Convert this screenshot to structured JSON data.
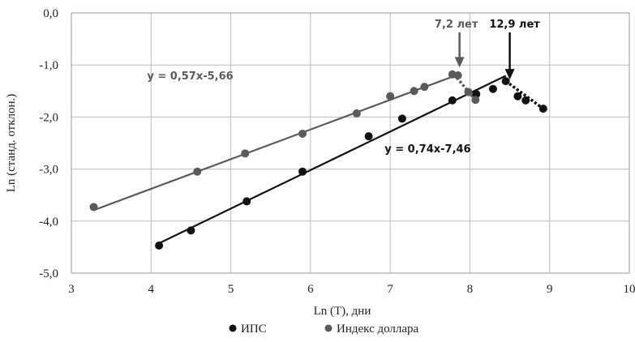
{
  "chart_data": {
    "type": "scatter",
    "xlabel": "Ln (T), дни",
    "ylabel": "Ln (станд. отклон.)",
    "xlim": [
      3,
      10
    ],
    "ylim": [
      -5,
      0
    ],
    "x_ticks": [
      3,
      4,
      5,
      6,
      7,
      8,
      9,
      10
    ],
    "y_ticks": [
      0,
      -1,
      -2,
      -3,
      -4,
      -5
    ],
    "x_tick_labels": [
      "3",
      "4",
      "5",
      "6",
      "7",
      "8",
      "9",
      "10"
    ],
    "y_tick_labels": [
      "0,0",
      "-1,0",
      "-2,0",
      "-3,0",
      "-4,0",
      "-5,0"
    ],
    "grid": true,
    "legend_position": "bottom",
    "series": [
      {
        "name": "ИПС",
        "color": "#111111",
        "points": [
          [
            4.1,
            -4.47
          ],
          [
            4.5,
            -4.18
          ],
          [
            5.2,
            -3.62
          ],
          [
            5.9,
            -3.05
          ],
          [
            6.73,
            -2.37
          ],
          [
            7.15,
            -2.03
          ],
          [
            7.78,
            -1.68
          ],
          [
            8.08,
            -1.56
          ],
          [
            8.29,
            -1.46
          ],
          [
            8.45,
            -1.31
          ],
          [
            8.6,
            -1.6
          ],
          [
            8.7,
            -1.68
          ],
          [
            8.92,
            -1.84
          ]
        ],
        "trendline": {
          "equation": "y = 0,74x-7,46",
          "slope": 0.74,
          "intercept": -7.46,
          "x_range": [
            4.07,
            8.45
          ]
        },
        "drop_line": [
          [
            8.45,
            -1.31
          ],
          [
            8.92,
            -1.84
          ]
        ],
        "peak": {
          "label": "12,9 лет",
          "x": 8.5,
          "y": -1.28
        }
      },
      {
        "name": "Индекс доллара",
        "color": "#5a5a5a",
        "points": [
          [
            3.28,
            -3.73
          ],
          [
            4.58,
            -3.05
          ],
          [
            5.18,
            -2.7
          ],
          [
            5.9,
            -2.32
          ],
          [
            6.58,
            -1.93
          ],
          [
            7.0,
            -1.6
          ],
          [
            7.3,
            -1.5
          ],
          [
            7.43,
            -1.42
          ],
          [
            7.78,
            -1.18
          ],
          [
            7.85,
            -1.2
          ],
          [
            7.98,
            -1.52
          ],
          [
            8.07,
            -1.67
          ]
        ],
        "trendline": {
          "equation": "y = 0,57x-5,66",
          "slope": 0.57,
          "intercept": -5.66,
          "x_range": [
            3.28,
            7.8
          ]
        },
        "drop_line": [
          [
            7.8,
            -1.18
          ],
          [
            8.07,
            -1.67
          ]
        ],
        "peak": {
          "label": "7,2 лет",
          "x": 7.87,
          "y": -1.05
        }
      }
    ],
    "equation_labels": [
      {
        "series": 1,
        "text": "y = 0,57x-5,66",
        "x": 3.95,
        "y": -1.28
      },
      {
        "series": 0,
        "text": "y = 0,74x-7,46",
        "x": 6.93,
        "y": -2.68
      }
    ]
  }
}
